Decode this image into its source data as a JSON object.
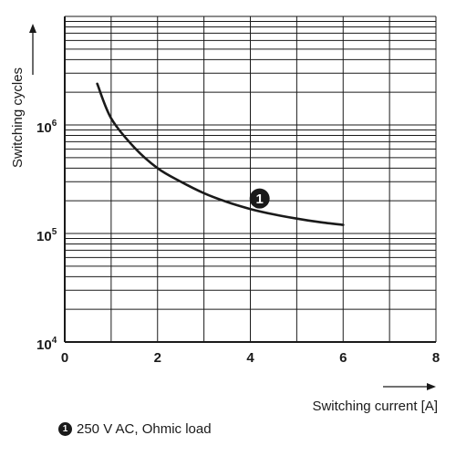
{
  "chart_data": {
    "type": "line",
    "title": "",
    "xlabel": "Switching current [A]",
    "ylabel": "Switching cycles",
    "xlim": [
      0,
      8
    ],
    "ylim_exp": [
      4,
      7
    ],
    "yscale": "log",
    "grid": true,
    "x_ticks": [
      "0",
      "2",
      "4",
      "6",
      "8"
    ],
    "y_ticks": [
      {
        "base": "10",
        "exp": "4"
      },
      {
        "base": "10",
        "exp": "5"
      },
      {
        "base": "10",
        "exp": "6"
      }
    ],
    "series": [
      {
        "marker": "1",
        "x": [
          0.7,
          1.0,
          1.5,
          2.0,
          2.5,
          3.0,
          3.5,
          4.0,
          4.5,
          5.0,
          5.5,
          6.0
        ],
        "y": [
          2400000,
          1150000,
          620000,
          400000,
          300000,
          235000,
          195000,
          168000,
          150000,
          137000,
          127000,
          120000
        ]
      }
    ],
    "annotation": {
      "label": "1",
      "x": 4.2,
      "y": 210000
    }
  },
  "legend": {
    "badge": "1",
    "text": "250 V AC, Ohmic load"
  },
  "colors": {
    "line": "#1a1a1a",
    "grid": "#1a1a1a",
    "background": "#ffffff"
  }
}
